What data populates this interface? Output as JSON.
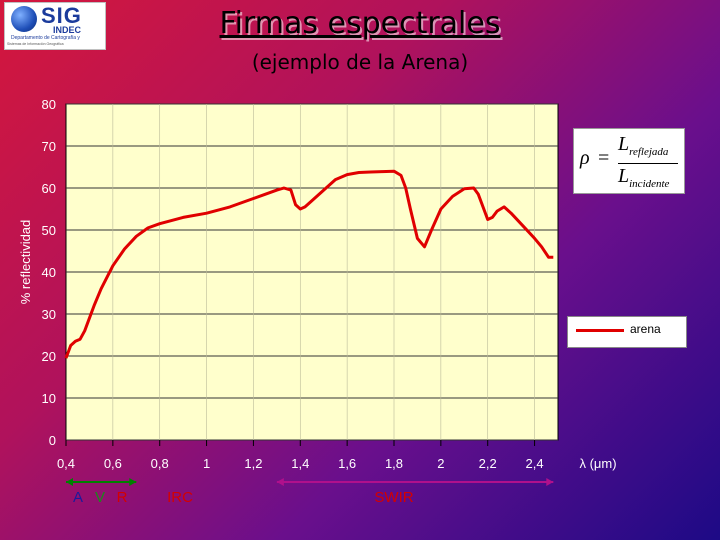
{
  "logo": {
    "main_text": "SIG",
    "sub_text": "INDEC",
    "department": "Departamento de Cartografía y",
    "tagline": "Sistemas de Información Geográfica"
  },
  "header": {
    "title": "Firmas espectrales",
    "subtitle": "(ejemplo de la Arena)"
  },
  "formula": {
    "symbol": "ρ",
    "equals": "=",
    "numerator": "L",
    "numerator_sub": "reflejada",
    "denominator": "L",
    "denominator_sub": "incidente"
  },
  "legend": {
    "label": "arena",
    "color": "#e00000"
  },
  "colors": {
    "plot_background": "#ffffcc",
    "grid": "#333333",
    "line": "#e00000",
    "visible_arrow": "#008000",
    "swir_arrow": "#b0108c"
  },
  "bands": {
    "a": "A",
    "a_color": "#1b1b9c",
    "v": "V",
    "v_color": "#1a8a1a",
    "r": "R",
    "r_color": "#d40000",
    "irc": "IRC",
    "irc_color": "#d40000",
    "swir": "SWIR",
    "swir_color": "#d40000"
  },
  "chart_data": {
    "type": "line",
    "title": "Firmas espectrales",
    "subtitle": "(ejemplo de la Arena)",
    "xlabel": "λ (μm)",
    "ylabel": "% reflectividad",
    "xlim": [
      0.4,
      2.5
    ],
    "ylim": [
      0,
      80
    ],
    "x_tick_labels": [
      "0,4",
      "0,6",
      "0,8",
      "1",
      "1,2",
      "1,4",
      "1,6",
      "1,8",
      "2",
      "2,2",
      "2,4"
    ],
    "y_tick_labels": [
      "0",
      "10",
      "20",
      "30",
      "40",
      "50",
      "60",
      "70",
      "80"
    ],
    "grid": true,
    "legend_position": "right",
    "series": [
      {
        "name": "arena",
        "x": [
          0.4,
          0.42,
          0.44,
          0.46,
          0.48,
          0.5,
          0.52,
          0.55,
          0.6,
          0.65,
          0.7,
          0.75,
          0.8,
          0.9,
          1.0,
          1.1,
          1.2,
          1.25,
          1.3,
          1.33,
          1.36,
          1.38,
          1.4,
          1.42,
          1.45,
          1.5,
          1.55,
          1.6,
          1.65,
          1.7,
          1.75,
          1.8,
          1.83,
          1.85,
          1.87,
          1.9,
          1.93,
          1.96,
          2.0,
          2.05,
          2.1,
          2.14,
          2.16,
          2.18,
          2.2,
          2.22,
          2.24,
          2.27,
          2.3,
          2.35,
          2.4,
          2.43,
          2.46,
          2.48
        ],
        "y": [
          19.5,
          22.5,
          23.5,
          24,
          26,
          29,
          32,
          36,
          41.5,
          45.5,
          48.5,
          50.5,
          51.5,
          53,
          54,
          55.5,
          57.5,
          58.5,
          59.5,
          60,
          59.5,
          56,
          55,
          55.5,
          57,
          59.5,
          62,
          63.2,
          63.7,
          63.8,
          63.9,
          64,
          63,
          60,
          55,
          48,
          46,
          50,
          55,
          58,
          59.8,
          60,
          58.5,
          55.5,
          52.5,
          53,
          54.5,
          55.5,
          54,
          51,
          48,
          46,
          43.5,
          43.5
        ]
      }
    ]
  }
}
